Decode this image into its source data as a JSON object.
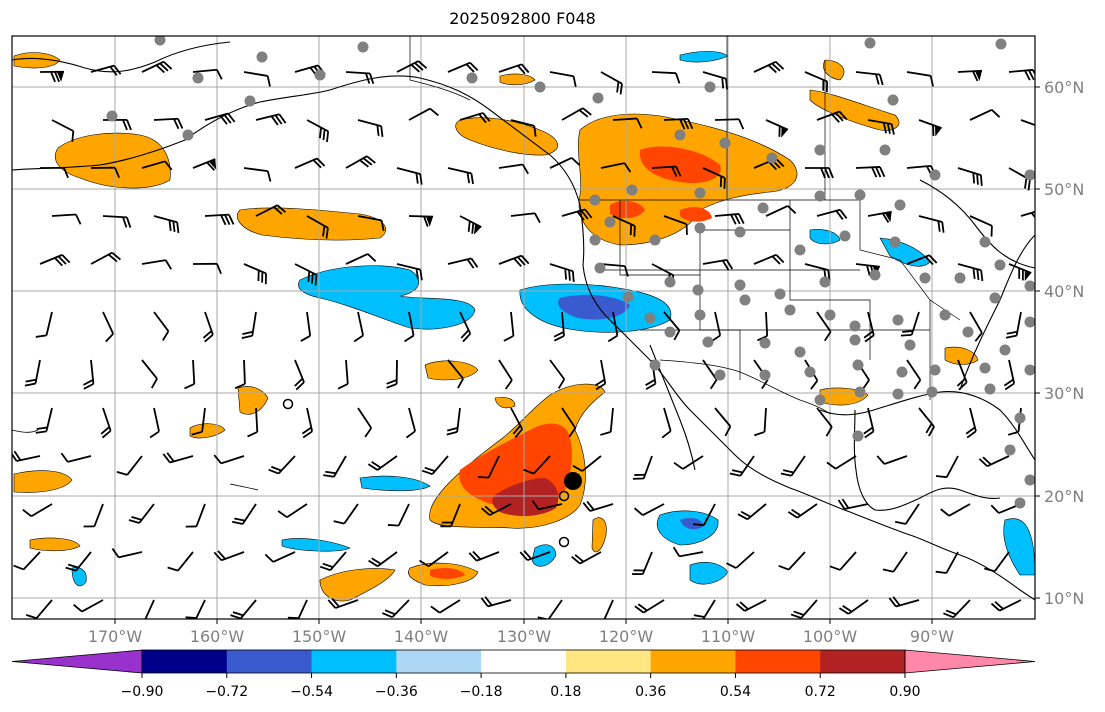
{
  "title": "2025092800 F048",
  "map": {
    "lon_labels": [
      "170°W",
      "160°W",
      "150°W",
      "140°W",
      "130°W",
      "120°W",
      "110°W",
      "100°W",
      "90°W"
    ],
    "lat_labels": [
      "60°N",
      "50°N",
      "40°N",
      "30°N",
      "20°N",
      "10°N"
    ]
  },
  "colorbar": {
    "ticks": [
      "−0.90",
      "−0.72",
      "−0.54",
      "−0.36",
      "−0.18",
      "0.18",
      "0.36",
      "0.54",
      "0.72",
      "0.90"
    ],
    "colors": [
      "#9932cc",
      "#00008b",
      "#3a5bcf",
      "#00bfff",
      "#add8f5",
      "#ffffff",
      "#ffe680",
      "#ffa500",
      "#ff4500",
      "#b22222",
      "#ff88aa"
    ]
  },
  "colors": {
    "land_line": "#000000",
    "grid": "#a9a9a9",
    "station_dot": "#808080"
  }
}
